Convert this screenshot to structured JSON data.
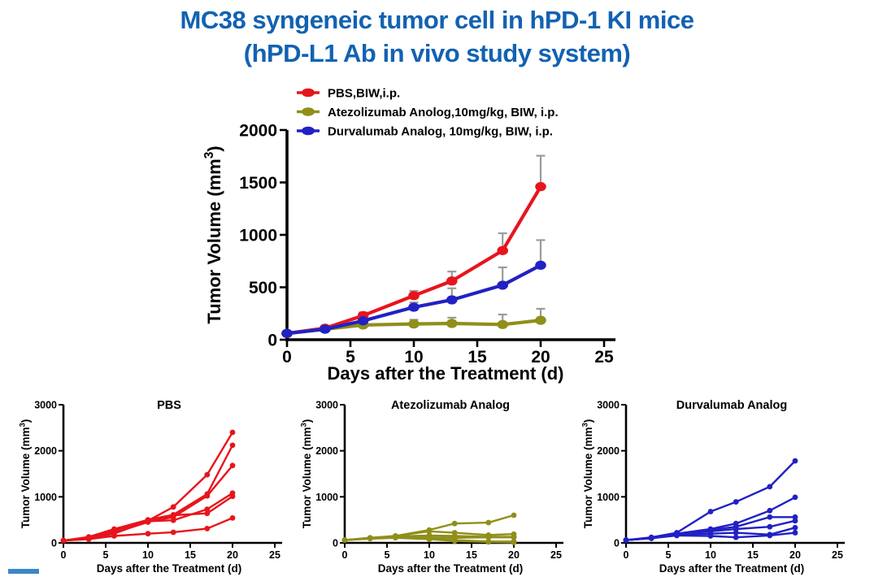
{
  "slide": {
    "title_line1": "MC38 syngeneic tumor cell in hPD-1 KI mice",
    "title_line2": "(hPD-L1 Ab in vivo study system)",
    "title_color": "#1262b2",
    "accent_bar_color": "#3a87c8"
  },
  "chart_data": [
    {
      "id": "chart-main",
      "type": "line",
      "title": "",
      "xlabel": "Days after the Treatment (d)",
      "ylabel": "Tumor Volume (mm³)",
      "x": [
        0,
        3,
        6,
        10,
        13,
        17,
        20
      ],
      "xlim": [
        0,
        25
      ],
      "ylim": [
        0,
        2000
      ],
      "xticks": [
        0,
        5,
        10,
        15,
        20,
        25
      ],
      "yticks": [
        0,
        500,
        1000,
        1500,
        2000
      ],
      "grid": false,
      "legend_position": "top",
      "error_bar_direction": "up",
      "error_color": "#9b9b9b",
      "legend": true,
      "series": [
        {
          "name": "PBS,BIW,i.p.",
          "color": "#e8141c",
          "values": [
            60,
            110,
            230,
            420,
            560,
            850,
            1460
          ],
          "errors": [
            15,
            20,
            30,
            45,
            90,
            165,
            295
          ]
        },
        {
          "name": "Atezolizumab Anolog,10mg/kg, BIW, i.p.",
          "color": "#8f8f1a",
          "values": [
            60,
            100,
            140,
            150,
            155,
            145,
            185
          ],
          "errors": [
            10,
            15,
            20,
            40,
            55,
            95,
            110
          ]
        },
        {
          "name": "Durvalumab  Analog, 10mg/kg, BIW, i.p.",
          "color": "#2121c4",
          "values": [
            60,
            100,
            180,
            310,
            380,
            520,
            710
          ],
          "errors": [
            10,
            15,
            25,
            45,
            110,
            170,
            240
          ]
        }
      ]
    },
    {
      "id": "chart-pbs",
      "type": "line",
      "title": "PBS",
      "xlabel": "Days after the Treatment (d)",
      "ylabel": "Tumor Volume (mm³)",
      "x": [
        0,
        3,
        6,
        10,
        13,
        17,
        20
      ],
      "xlim": [
        0,
        25
      ],
      "ylim": [
        0,
        3000
      ],
      "xticks": [
        0,
        5,
        10,
        15,
        20,
        25
      ],
      "yticks": [
        0,
        1000,
        2000,
        3000
      ],
      "grid": false,
      "color": "#e8141c",
      "curves": [
        [
          50,
          120,
          280,
          480,
          780,
          1480,
          2400
        ],
        [
          50,
          130,
          300,
          500,
          610,
          1060,
          2120
        ],
        [
          50,
          100,
          250,
          460,
          560,
          1020,
          1680
        ],
        [
          50,
          100,
          200,
          470,
          490,
          730,
          1080
        ],
        [
          50,
          110,
          220,
          450,
          600,
          640,
          1010
        ],
        [
          50,
          80,
          150,
          200,
          230,
          310,
          540
        ]
      ]
    },
    {
      "id": "chart-atez",
      "type": "line",
      "title": "Atezolizumab Analog",
      "xlabel": "Days after the Treatment (d)",
      "ylabel": "Tumor Volume (mm³)",
      "x": [
        0,
        3,
        6,
        10,
        13,
        17,
        20
      ],
      "xlim": [
        0,
        25
      ],
      "ylim": [
        0,
        3000
      ],
      "xticks": [
        0,
        5,
        10,
        15,
        20,
        25
      ],
      "yticks": [
        0,
        1000,
        2000,
        3000
      ],
      "grid": false,
      "color": "#8f8f1a",
      "curves": [
        [
          60,
          110,
          150,
          280,
          420,
          440,
          600
        ],
        [
          60,
          100,
          150,
          250,
          220,
          170,
          190
        ],
        [
          60,
          110,
          140,
          160,
          150,
          130,
          130
        ],
        [
          60,
          100,
          130,
          120,
          110,
          120,
          120
        ],
        [
          60,
          100,
          120,
          100,
          60,
          30,
          30
        ],
        [
          60,
          90,
          110,
          80,
          40,
          20,
          10
        ]
      ]
    },
    {
      "id": "chart-durva",
      "type": "line",
      "title": "Durvalumab Analog",
      "xlabel": "Days after the Treatment (d)",
      "ylabel": "Tumor Volume (mm³)",
      "x": [
        0,
        3,
        6,
        10,
        13,
        17,
        20
      ],
      "xlim": [
        0,
        25
      ],
      "ylim": [
        0,
        3000
      ],
      "xticks": [
        0,
        5,
        10,
        15,
        20,
        25
      ],
      "yticks": [
        0,
        1000,
        2000,
        3000
      ],
      "grid": false,
      "color": "#2121c4",
      "curves": [
        [
          60,
          120,
          220,
          680,
          890,
          1220,
          1780
        ],
        [
          60,
          110,
          200,
          300,
          420,
          700,
          990
        ],
        [
          60,
          110,
          200,
          280,
          350,
          560,
          560
        ],
        [
          60,
          100,
          180,
          250,
          300,
          350,
          480
        ],
        [
          60,
          100,
          180,
          200,
          220,
          180,
          330
        ],
        [
          60,
          100,
          160,
          150,
          120,
          160,
          220
        ]
      ]
    }
  ]
}
